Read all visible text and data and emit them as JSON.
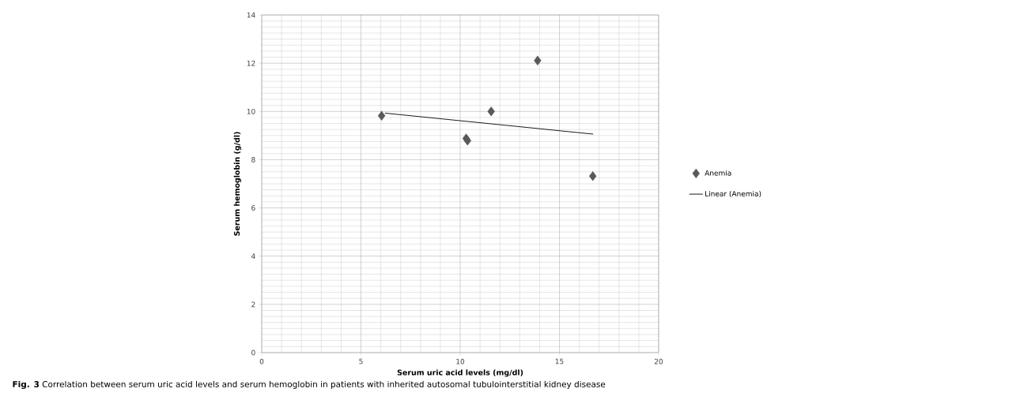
{
  "chart_data": {
    "type": "scatter",
    "xlabel": "Serum uric acid levels (mg/dl)",
    "ylabel": "Serum hemoglobin (g/dl)",
    "annotations": [
      "**Fig. 3** Correlation between serum uric acid levels and serum hemoglobin in patients with inherited autosomal tubulointerstitial kidney disease"
    ],
    "series": [
      {
        "name": "Anemia",
        "color": "#595959",
        "marker": "diamond",
        "x": [
          6.04,
          10.3,
          10.37,
          11.56,
          13.9,
          16.68
        ],
        "values": [
          9.82,
          8.88,
          8.79,
          10.0,
          12.11,
          7.32
        ]
      },
      {
        "name": "Linear (Anemia)",
        "type": "line",
        "color": "#000000",
        "marker": "none",
        "x": [
          6.21,
          16.7
        ],
        "values": [
          9.93,
          9.06
        ]
      }
    ],
    "xlim": [
      0,
      20
    ],
    "ylim": [
      0,
      14
    ],
    "xticks": [
      0,
      5,
      10,
      15,
      20
    ],
    "yticks": [
      0,
      2,
      4,
      6,
      8,
      10,
      12,
      14
    ],
    "grid": true,
    "legend": "right"
  }
}
